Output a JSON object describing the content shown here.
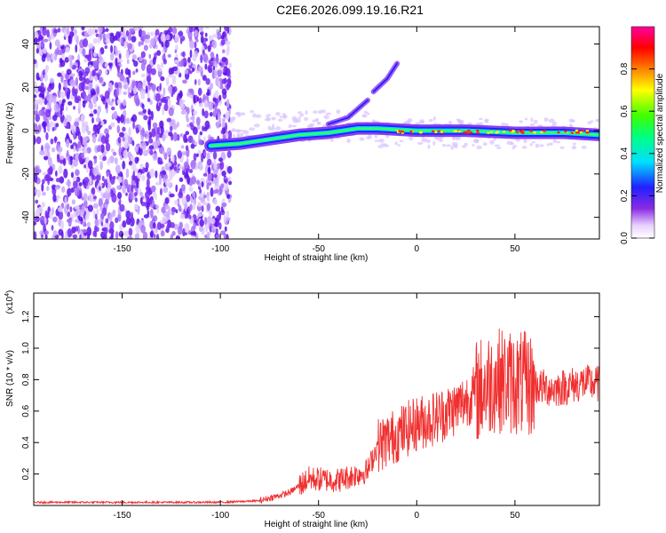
{
  "title": "C2E6.2026.099.19.16.R21",
  "colors": {
    "snr_line": "#f03030",
    "noise_purple": "#7a2df0",
    "axis": "#000000"
  },
  "chart_data": [
    {
      "type": "heatmap",
      "title": "C2E6.2026.099.19.16.R21",
      "xlabel": "Height of straight line (km)",
      "ylabel": "Frequency (Hz)",
      "xlim": [
        -195,
        93
      ],
      "ylim": [
        -50,
        48
      ],
      "xticks": [
        -150,
        -100,
        -50,
        0,
        50
      ],
      "yticks": [
        40,
        20,
        0,
        -20,
        -40
      ],
      "colorbar": {
        "label": "Normalized spectral amplitude",
        "range": [
          0,
          1
        ],
        "ticks": [
          0.0,
          0.2,
          0.4,
          0.6,
          0.8
        ]
      },
      "ridge": [
        {
          "x": -105,
          "y": -7
        },
        {
          "x": -90,
          "y": -6
        },
        {
          "x": -75,
          "y": -4
        },
        {
          "x": -60,
          "y": -2
        },
        {
          "x": -45,
          "y": -1
        },
        {
          "x": -30,
          "y": 1
        },
        {
          "x": -20,
          "y": 1
        },
        {
          "x": 0,
          "y": 0
        },
        {
          "x": 25,
          "y": 0
        },
        {
          "x": 50,
          "y": -1
        },
        {
          "x": 75,
          "y": -1
        },
        {
          "x": 93,
          "y": -2
        }
      ],
      "branches": [
        [
          {
            "x": -45,
            "y": 3
          },
          {
            "x": -35,
            "y": 6
          },
          {
            "x": -25,
            "y": 14
          }
        ],
        [
          {
            "x": -22,
            "y": 18
          },
          {
            "x": -15,
            "y": 24
          },
          {
            "x": -10,
            "y": 31
          }
        ]
      ]
    },
    {
      "type": "line",
      "xlabel": "Height of straight line (km)",
      "ylabel": "SNR (10 * v/v)",
      "yscale_note": "(x10",
      "yscale_exp": "4",
      "xlim": [
        -195,
        93
      ],
      "ylim": [
        0,
        1.35
      ],
      "xticks": [
        -150,
        -100,
        -50,
        0,
        50
      ],
      "yticks": [
        0.2,
        0.4,
        0.6,
        0.8,
        1.0,
        1.2
      ],
      "trend": [
        {
          "x": -195,
          "y": 0.02
        },
        {
          "x": -100,
          "y": 0.02
        },
        {
          "x": -80,
          "y": 0.03
        },
        {
          "x": -65,
          "y": 0.08
        },
        {
          "x": -55,
          "y": 0.17
        },
        {
          "x": -40,
          "y": 0.16
        },
        {
          "x": -25,
          "y": 0.22
        },
        {
          "x": -20,
          "y": 0.38
        },
        {
          "x": -10,
          "y": 0.45
        },
        {
          "x": 0,
          "y": 0.52
        },
        {
          "x": 10,
          "y": 0.56
        },
        {
          "x": 20,
          "y": 0.62
        },
        {
          "x": 30,
          "y": 0.72
        },
        {
          "x": 40,
          "y": 0.8
        },
        {
          "x": 50,
          "y": 0.78
        },
        {
          "x": 60,
          "y": 0.76
        },
        {
          "x": 70,
          "y": 0.74
        },
        {
          "x": 85,
          "y": 0.78
        },
        {
          "x": 93,
          "y": 0.77
        }
      ]
    }
  ]
}
